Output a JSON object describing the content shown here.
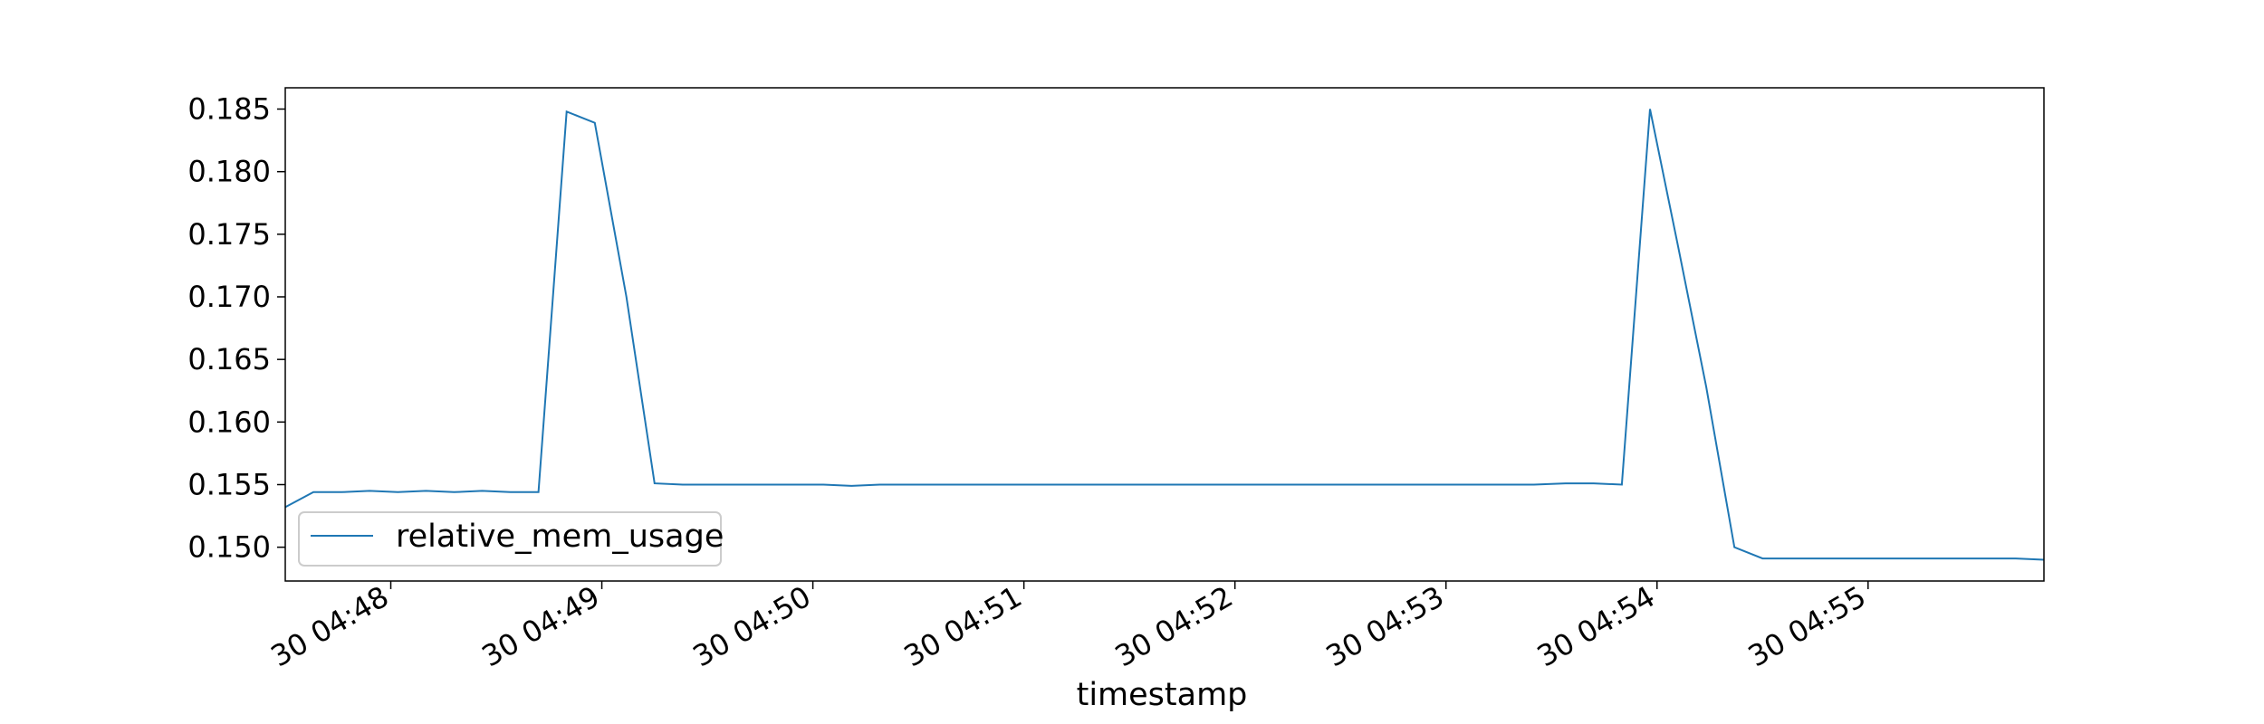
{
  "chart_data": {
    "type": "line",
    "xlabel": "timestamp",
    "ylabel": "",
    "title": "",
    "ylim": [
      0.1473,
      0.1867
    ],
    "xlim": [
      "04:47:30",
      "04:55:50"
    ],
    "grid": false,
    "legend_position": "lower-left",
    "x_ticks": [
      {
        "time": "04:48:00",
        "label": "30 04:48"
      },
      {
        "time": "04:49:00",
        "label": "30 04:49"
      },
      {
        "time": "04:50:00",
        "label": "30 04:50"
      },
      {
        "time": "04:51:00",
        "label": "30 04:51"
      },
      {
        "time": "04:52:00",
        "label": "30 04:52"
      },
      {
        "time": "04:53:00",
        "label": "30 04:53"
      },
      {
        "time": "04:54:00",
        "label": "30 04:54"
      },
      {
        "time": "04:55:00",
        "label": "30 04:55"
      }
    ],
    "y_ticks": [
      {
        "value": 0.15,
        "label": "0.150"
      },
      {
        "value": 0.155,
        "label": "0.155"
      },
      {
        "value": 0.16,
        "label": "0.160"
      },
      {
        "value": 0.165,
        "label": "0.165"
      },
      {
        "value": 0.17,
        "label": "0.170"
      },
      {
        "value": 0.175,
        "label": "0.175"
      },
      {
        "value": 0.18,
        "label": "0.180"
      },
      {
        "value": 0.185,
        "label": "0.185"
      }
    ],
    "series": [
      {
        "name": "relative_mem_usage",
        "color": "#1f77b4",
        "x": [
          "04:47:30",
          "04:47:38",
          "04:47:46",
          "04:47:54",
          "04:48:02",
          "04:48:10",
          "04:48:18",
          "04:48:26",
          "04:48:34",
          "04:48:42",
          "04:48:50",
          "04:48:58",
          "04:49:07",
          "04:49:15",
          "04:49:23",
          "04:49:31",
          "04:49:39",
          "04:49:47",
          "04:49:55",
          "04:50:03",
          "04:50:11",
          "04:50:19",
          "04:50:27",
          "04:50:36",
          "04:50:44",
          "04:50:52",
          "04:51:00",
          "04:51:08",
          "04:51:16",
          "04:51:24",
          "04:51:32",
          "04:51:40",
          "04:51:48",
          "04:51:56",
          "04:52:05",
          "04:52:13",
          "04:52:21",
          "04:52:29",
          "04:52:37",
          "04:52:45",
          "04:52:53",
          "04:53:01",
          "04:53:09",
          "04:53:17",
          "04:53:25",
          "04:53:34",
          "04:53:42",
          "04:53:50",
          "04:53:58",
          "04:54:06",
          "04:54:14",
          "04:54:22",
          "04:54:30",
          "04:54:38",
          "04:54:46",
          "04:54:54",
          "04:55:02",
          "04:55:10",
          "04:55:18",
          "04:55:26",
          "04:55:34",
          "04:55:42",
          "04:55:50"
        ],
        "y": [
          0.1532,
          0.1544,
          0.1544,
          0.1545,
          0.1544,
          0.1545,
          0.1544,
          0.1545,
          0.1544,
          0.1544,
          0.1848,
          0.1839,
          0.17,
          0.1551,
          0.155,
          0.155,
          0.155,
          0.155,
          0.155,
          0.155,
          0.1549,
          0.155,
          0.155,
          0.155,
          0.155,
          0.155,
          0.155,
          0.155,
          0.155,
          0.155,
          0.155,
          0.155,
          0.155,
          0.155,
          0.155,
          0.155,
          0.155,
          0.155,
          0.155,
          0.155,
          0.155,
          0.155,
          0.155,
          0.155,
          0.155,
          0.1551,
          0.1551,
          0.155,
          0.185,
          0.174,
          0.1628,
          0.15,
          0.1491,
          0.1491,
          0.1491,
          0.1491,
          0.1491,
          0.1491,
          0.1491,
          0.1491,
          0.1491,
          0.1491,
          0.149
        ]
      }
    ]
  }
}
